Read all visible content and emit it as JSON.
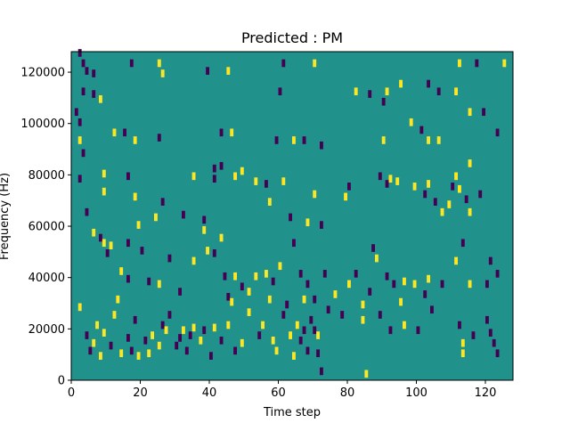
{
  "chart_data": {
    "type": "heatmap",
    "title": "Predicted : PM",
    "xlabel": "Time step",
    "ylabel": "Frequency (Hz)",
    "xlim": [
      0,
      128
    ],
    "ylim": [
      0,
      128000
    ],
    "xticks": [
      0,
      20,
      40,
      60,
      80,
      100,
      120
    ],
    "yticks": [
      0,
      20000,
      40000,
      60000,
      80000,
      100000,
      120000
    ],
    "xtick_labels": [
      "0",
      "20",
      "40",
      "60",
      "80",
      "100",
      "120"
    ],
    "ytick_labels": [
      "0",
      "20000",
      "40000",
      "60000",
      "80000",
      "100000",
      "120000"
    ],
    "grid": false,
    "legend": "none",
    "colormap": "viridis",
    "colors": {
      "background": "#21918c",
      "high": "#fde725",
      "low": "#440154"
    },
    "value_scale": {
      "background": 0,
      "high": 1,
      "low": -1
    },
    "cells_note_units": "each cell = [time_step, frequency_bin(1000 Hz), value]",
    "cells": [
      [
        2,
        126,
        -1
      ],
      [
        3,
        122,
        -1
      ],
      [
        4,
        119,
        -1
      ],
      [
        6,
        118,
        -1
      ],
      [
        17,
        122,
        -1
      ],
      [
        25,
        122,
        1
      ],
      [
        26,
        118,
        1
      ],
      [
        39,
        119,
        -1
      ],
      [
        45,
        119,
        1
      ],
      [
        61,
        122,
        -1
      ],
      [
        70,
        122,
        1
      ],
      [
        112,
        122,
        1
      ],
      [
        117,
        122,
        -1
      ],
      [
        125,
        122,
        1
      ],
      [
        3,
        111,
        -1
      ],
      [
        6,
        110,
        -1
      ],
      [
        8,
        108,
        1
      ],
      [
        60,
        111,
        -1
      ],
      [
        82,
        111,
        1
      ],
      [
        86,
        110,
        -1
      ],
      [
        90,
        107,
        -1
      ],
      [
        91,
        111,
        1
      ],
      [
        95,
        114,
        1
      ],
      [
        103,
        114,
        -1
      ],
      [
        106,
        111,
        -1
      ],
      [
        111,
        111,
        1
      ],
      [
        115,
        103,
        1
      ],
      [
        119,
        103,
        -1
      ],
      [
        1,
        103,
        -1
      ],
      [
        2,
        99,
        -1
      ],
      [
        2,
        92,
        1
      ],
      [
        3,
        87,
        -1
      ],
      [
        12,
        95,
        1
      ],
      [
        15,
        95,
        -1
      ],
      [
        18,
        92,
        1
      ],
      [
        25,
        93,
        -1
      ],
      [
        43,
        95,
        -1
      ],
      [
        46,
        95,
        1
      ],
      [
        59,
        92,
        -1
      ],
      [
        64,
        92,
        1
      ],
      [
        67,
        92,
        -1
      ],
      [
        72,
        90,
        -1
      ],
      [
        90,
        92,
        1
      ],
      [
        98,
        99,
        1
      ],
      [
        101,
        96,
        -1
      ],
      [
        103,
        92,
        1
      ],
      [
        106,
        92,
        1
      ],
      [
        115,
        83,
        1
      ],
      [
        123,
        95,
        -1
      ],
      [
        2,
        77,
        -1
      ],
      [
        9,
        79,
        1
      ],
      [
        9,
        72,
        1
      ],
      [
        16,
        78,
        -1
      ],
      [
        18,
        70,
        1
      ],
      [
        24,
        62,
        1
      ],
      [
        26,
        68,
        -1
      ],
      [
        32,
        63,
        -1
      ],
      [
        35,
        78,
        1
      ],
      [
        41,
        77,
        -1
      ],
      [
        41,
        81,
        -1
      ],
      [
        43,
        82,
        -1
      ],
      [
        47,
        78,
        1
      ],
      [
        49,
        80,
        1
      ],
      [
        53,
        76,
        1
      ],
      [
        56,
        75,
        -1
      ],
      [
        57,
        68,
        1
      ],
      [
        61,
        76,
        1
      ],
      [
        63,
        62,
        -1
      ],
      [
        68,
        60,
        1
      ],
      [
        70,
        71,
        1
      ],
      [
        72,
        59,
        -1
      ],
      [
        79,
        70,
        1
      ],
      [
        80,
        74,
        -1
      ],
      [
        89,
        78,
        -1
      ],
      [
        91,
        75,
        -1
      ],
      [
        92,
        77,
        1
      ],
      [
        94,
        76,
        1
      ],
      [
        99,
        74,
        1
      ],
      [
        102,
        71,
        -1
      ],
      [
        103,
        75,
        1
      ],
      [
        105,
        68,
        -1
      ],
      [
        107,
        64,
        1
      ],
      [
        109,
        67,
        1
      ],
      [
        110,
        74,
        -1
      ],
      [
        111,
        78,
        1
      ],
      [
        112,
        73,
        1
      ],
      [
        114,
        69,
        -1
      ],
      [
        115,
        64,
        1
      ],
      [
        118,
        71,
        -1
      ],
      [
        4,
        64,
        -1
      ],
      [
        6,
        56,
        1
      ],
      [
        8,
        54,
        -1
      ],
      [
        9,
        52,
        1
      ],
      [
        10,
        48,
        -1
      ],
      [
        11,
        51,
        1
      ],
      [
        14,
        41,
        1
      ],
      [
        16,
        52,
        -1
      ],
      [
        16,
        38,
        -1
      ],
      [
        19,
        59,
        1
      ],
      [
        20,
        49,
        -1
      ],
      [
        22,
        37,
        -1
      ],
      [
        25,
        36,
        1
      ],
      [
        28,
        46,
        -1
      ],
      [
        31,
        33,
        -1
      ],
      [
        35,
        45,
        1
      ],
      [
        38,
        61,
        -1
      ],
      [
        38,
        57,
        1
      ],
      [
        39,
        49,
        1
      ],
      [
        41,
        48,
        -1
      ],
      [
        43,
        54,
        1
      ],
      [
        44,
        39,
        -1
      ],
      [
        45,
        31,
        -1
      ],
      [
        46,
        29,
        1
      ],
      [
        47,
        39,
        1
      ],
      [
        49,
        35,
        -1
      ],
      [
        51,
        33,
        1
      ],
      [
        53,
        39,
        1
      ],
      [
        56,
        40,
        1
      ],
      [
        58,
        37,
        -1
      ],
      [
        60,
        43,
        1
      ],
      [
        62,
        28,
        -1
      ],
      [
        64,
        52,
        -1
      ],
      [
        66,
        40,
        -1
      ],
      [
        67,
        30,
        1
      ],
      [
        68,
        36,
        -1
      ],
      [
        70,
        30,
        -1
      ],
      [
        73,
        40,
        -1
      ],
      [
        76,
        32,
        1
      ],
      [
        80,
        36,
        1
      ],
      [
        82,
        40,
        -1
      ],
      [
        84,
        28,
        1
      ],
      [
        86,
        33,
        -1
      ],
      [
        87,
        50,
        -1
      ],
      [
        88,
        46,
        1
      ],
      [
        91,
        39,
        -1
      ],
      [
        93,
        36,
        -1
      ],
      [
        95,
        29,
        1
      ],
      [
        96,
        37,
        1
      ],
      [
        99,
        36,
        1
      ],
      [
        102,
        32,
        -1
      ],
      [
        103,
        38,
        1
      ],
      [
        107,
        36,
        -1
      ],
      [
        111,
        45,
        1
      ],
      [
        113,
        52,
        -1
      ],
      [
        115,
        36,
        1
      ],
      [
        120,
        36,
        -1
      ],
      [
        121,
        45,
        -1
      ],
      [
        123,
        40,
        -1
      ],
      [
        2,
        27,
        1
      ],
      [
        4,
        16,
        -1
      ],
      [
        5,
        10,
        -1
      ],
      [
        6,
        13,
        1
      ],
      [
        7,
        20,
        1
      ],
      [
        8,
        8,
        1
      ],
      [
        9,
        17,
        1
      ],
      [
        11,
        12,
        -1
      ],
      [
        12,
        24,
        1
      ],
      [
        13,
        30,
        1
      ],
      [
        14,
        9,
        1
      ],
      [
        16,
        15,
        -1
      ],
      [
        17,
        10,
        -1
      ],
      [
        18,
        22,
        -1
      ],
      [
        19,
        8,
        1
      ],
      [
        21,
        14,
        -1
      ],
      [
        22,
        9,
        1
      ],
      [
        23,
        16,
        1
      ],
      [
        25,
        12,
        1
      ],
      [
        26,
        20,
        -1
      ],
      [
        27,
        18,
        1
      ],
      [
        28,
        24,
        -1
      ],
      [
        30,
        12,
        -1
      ],
      [
        31,
        15,
        -1
      ],
      [
        32,
        18,
        1
      ],
      [
        33,
        10,
        -1
      ],
      [
        34,
        16,
        -1
      ],
      [
        35,
        19,
        1
      ],
      [
        37,
        14,
        1
      ],
      [
        38,
        18,
        -1
      ],
      [
        40,
        8,
        -1
      ],
      [
        41,
        19,
        1
      ],
      [
        43,
        14,
        -1
      ],
      [
        45,
        20,
        1
      ],
      [
        47,
        10,
        -1
      ],
      [
        49,
        13,
        1
      ],
      [
        51,
        25,
        1
      ],
      [
        54,
        16,
        -1
      ],
      [
        55,
        20,
        1
      ],
      [
        57,
        30,
        1
      ],
      [
        58,
        14,
        1
      ],
      [
        59,
        10,
        1
      ],
      [
        61,
        24,
        -1
      ],
      [
        63,
        16,
        1
      ],
      [
        64,
        8,
        1
      ],
      [
        65,
        20,
        1
      ],
      [
        66,
        14,
        -1
      ],
      [
        67,
        18,
        -1
      ],
      [
        68,
        10,
        -1
      ],
      [
        69,
        22,
        -1
      ],
      [
        70,
        18,
        -1
      ],
      [
        71,
        16,
        1
      ],
      [
        71,
        9,
        -1
      ],
      [
        72,
        2,
        -1
      ],
      [
        74,
        26,
        -1
      ],
      [
        78,
        24,
        -1
      ],
      [
        84,
        22,
        1
      ],
      [
        85,
        1,
        1
      ],
      [
        89,
        24,
        -1
      ],
      [
        92,
        18,
        -1
      ],
      [
        96,
        20,
        1
      ],
      [
        100,
        18,
        -1
      ],
      [
        104,
        26,
        -1
      ],
      [
        112,
        20,
        -1
      ],
      [
        113,
        13,
        1
      ],
      [
        113,
        9,
        1
      ],
      [
        116,
        16,
        -1
      ],
      [
        120,
        22,
        -1
      ],
      [
        121,
        17,
        -1
      ],
      [
        122,
        13,
        -1
      ],
      [
        123,
        9,
        -1
      ]
    ]
  }
}
